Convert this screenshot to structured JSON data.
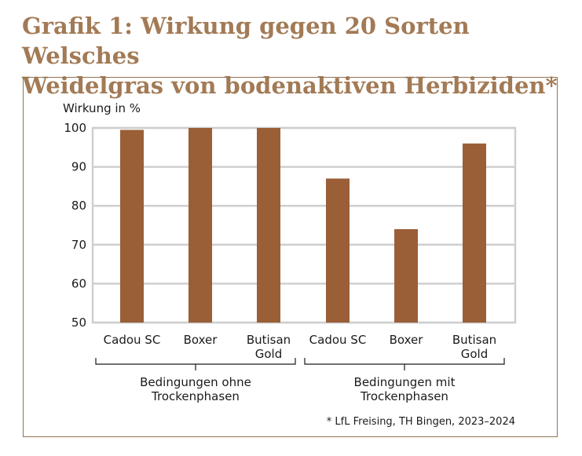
{
  "title_lines": [
    "Grafik 1: Wirkung gegen 20 Sorten Welsches",
    "Weidelgras von bodenaktiven Herbiziden*"
  ],
  "footnote": "* LfL Freising, TH Bingen, 2023–2024",
  "colors": {
    "bar": "#9a5f37",
    "grid": "#cfcfcf",
    "title": "#a27a55",
    "frame": "#8f7456"
  },
  "chart_data": {
    "type": "bar",
    "ylabel": "Wirkung in %",
    "ylim": [
      50,
      100
    ],
    "yticks": [
      100,
      90,
      80,
      70,
      60,
      50
    ],
    "grid": true,
    "categories": [
      {
        "lines": [
          "Cadou SC"
        ]
      },
      {
        "lines": [
          "Boxer"
        ]
      },
      {
        "lines": [
          "Butisan",
          "Gold"
        ]
      },
      {
        "lines": [
          "Cadou SC"
        ]
      },
      {
        "lines": [
          "Boxer"
        ]
      },
      {
        "lines": [
          "Butisan",
          "Gold"
        ]
      }
    ],
    "values": [
      99.5,
      100,
      100,
      87,
      74,
      96
    ],
    "groups": [
      {
        "lines": [
          "Bedingungen ohne",
          "Trockenphasen"
        ],
        "members": [
          0,
          1,
          2
        ]
      },
      {
        "lines": [
          "Bedingungen mit",
          "Trockenphasen"
        ],
        "members": [
          3,
          4,
          5
        ]
      }
    ]
  }
}
